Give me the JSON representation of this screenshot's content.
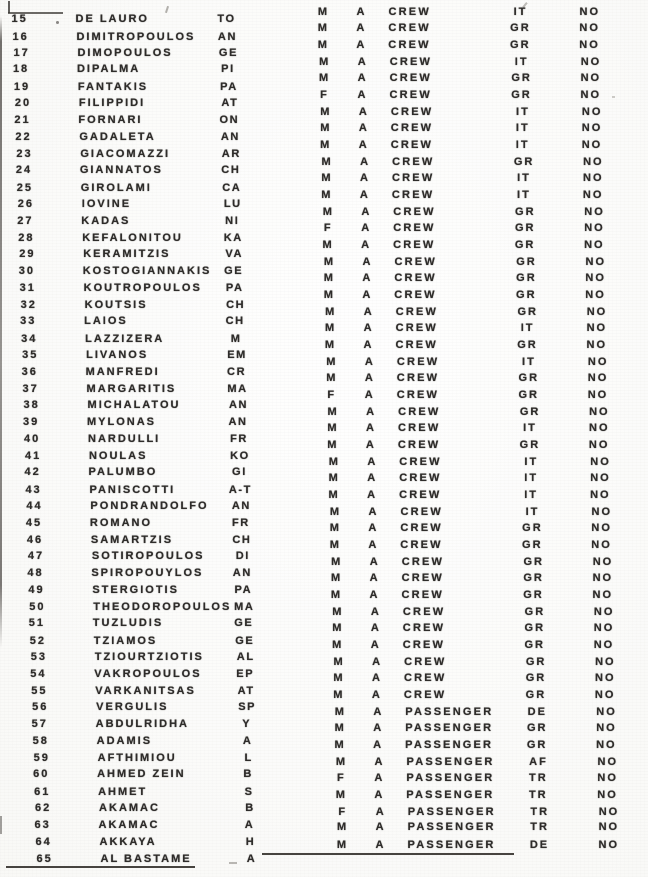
{
  "colors": {
    "ink": "#2e2c2a",
    "paper": "#fbfbf9",
    "rule": "#474440"
  },
  "table": {
    "rows": [
      {
        "num": "15",
        "surname": "DE LAURO",
        "given": "TO",
        "gender": "M",
        "status": "A",
        "type": "CREW",
        "nationality": "IT",
        "flag": "NO"
      },
      {
        "num": "16",
        "surname": "DIMITROPOULOS",
        "given": "AN",
        "gender": "M",
        "status": "A",
        "type": "CREW",
        "nationality": "GR",
        "flag": "NO"
      },
      {
        "num": "17",
        "surname": "DIMOPOULOS",
        "given": "GE",
        "gender": "M",
        "status": "A",
        "type": "CREW",
        "nationality": "GR",
        "flag": "NO"
      },
      {
        "num": "18",
        "surname": "DIPALMA",
        "given": "PI",
        "gender": "M",
        "status": "A",
        "type": "CREW",
        "nationality": "IT",
        "flag": "NO"
      },
      {
        "num": "19",
        "surname": "FANTAKIS",
        "given": "PA",
        "gender": "M",
        "status": "A",
        "type": "CREW",
        "nationality": "GR",
        "flag": "NO"
      },
      {
        "num": "20",
        "surname": "FILIPPIDI",
        "given": "AT",
        "gender": "F",
        "status": "A",
        "type": "CREW",
        "nationality": "GR",
        "flag": "NO"
      },
      {
        "num": "21",
        "surname": "FORNARI",
        "given": "ON",
        "gender": "M",
        "status": "A",
        "type": "CREW",
        "nationality": "IT",
        "flag": "NO"
      },
      {
        "num": "22",
        "surname": "GADALETA",
        "given": "AN",
        "gender": "M",
        "status": "A",
        "type": "CREW",
        "nationality": "IT",
        "flag": "NO"
      },
      {
        "num": "23",
        "surname": "GIACOMAZZI",
        "given": "AR",
        "gender": "M",
        "status": "A",
        "type": "CREW",
        "nationality": "IT",
        "flag": "NO"
      },
      {
        "num": "24",
        "surname": "GIANNATOS",
        "given": "CH",
        "gender": "M",
        "status": "A",
        "type": "CREW",
        "nationality": "GR",
        "flag": "NO"
      },
      {
        "num": "25",
        "surname": "GIROLAMI",
        "given": "CA",
        "gender": "M",
        "status": "A",
        "type": "CREW",
        "nationality": "IT",
        "flag": "NO"
      },
      {
        "num": "26",
        "surname": "IOVINE",
        "given": "LU",
        "gender": "M",
        "status": "A",
        "type": "CREW",
        "nationality": "IT",
        "flag": "NO"
      },
      {
        "num": "27",
        "surname": "KADAS",
        "given": "NI",
        "gender": "M",
        "status": "A",
        "type": "CREW",
        "nationality": "GR",
        "flag": "NO"
      },
      {
        "num": "28",
        "surname": "KEFALONITOU",
        "given": "KA",
        "gender": "F",
        "status": "A",
        "type": "CREW",
        "nationality": "GR",
        "flag": "NO"
      },
      {
        "num": "29",
        "surname": "KERAMITZIS",
        "given": "VA",
        "gender": "M",
        "status": "A",
        "type": "CREW",
        "nationality": "GR",
        "flag": "NO"
      },
      {
        "num": "30",
        "surname": "KOSTOGIANNAKIS",
        "given": "GE",
        "gender": "M",
        "status": "A",
        "type": "CREW",
        "nationality": "GR",
        "flag": "NO"
      },
      {
        "num": "31",
        "surname": "KOUTROPOULOS",
        "given": "PA",
        "gender": "M",
        "status": "A",
        "type": "CREW",
        "nationality": "GR",
        "flag": "NO"
      },
      {
        "num": "32",
        "surname": "KOUTSIS",
        "given": "CH",
        "gender": "M",
        "status": "A",
        "type": "CREW",
        "nationality": "GR",
        "flag": "NO"
      },
      {
        "num": "33",
        "surname": "LAIOS",
        "given": "CH",
        "gender": "M",
        "status": "A",
        "type": "CREW",
        "nationality": "GR",
        "flag": "NO"
      },
      {
        "num": "34",
        "surname": "LAZZIZERA",
        "given": "M",
        "gender": "M",
        "status": "A",
        "type": "CREW",
        "nationality": "IT",
        "flag": "NO"
      },
      {
        "num": "35",
        "surname": "LIVANOS",
        "given": "EM",
        "gender": "M",
        "status": "A",
        "type": "CREW",
        "nationality": "GR",
        "flag": "NO"
      },
      {
        "num": "36",
        "surname": "MANFREDI",
        "given": "CR",
        "gender": "M",
        "status": "A",
        "type": "CREW",
        "nationality": "IT",
        "flag": "NO"
      },
      {
        "num": "37",
        "surname": "MARGARITIS",
        "given": "MA",
        "gender": "M",
        "status": "A",
        "type": "CREW",
        "nationality": "GR",
        "flag": "NO"
      },
      {
        "num": "38",
        "surname": "MICHALATOU",
        "given": "AN",
        "gender": "F",
        "status": "A",
        "type": "CREW",
        "nationality": "GR",
        "flag": "NO"
      },
      {
        "num": "39",
        "surname": "MYLONAS",
        "given": "AN",
        "gender": "M",
        "status": "A",
        "type": "CREW",
        "nationality": "GR",
        "flag": "NO"
      },
      {
        "num": "40",
        "surname": "NARDULLI",
        "given": "FR",
        "gender": "M",
        "status": "A",
        "type": "CREW",
        "nationality": "IT",
        "flag": "NO"
      },
      {
        "num": "41",
        "surname": "NOULAS",
        "given": "KO",
        "gender": "M",
        "status": "A",
        "type": "CREW",
        "nationality": "GR",
        "flag": "NO"
      },
      {
        "num": "42",
        "surname": "PALUMBO",
        "given": "GI",
        "gender": "M",
        "status": "A",
        "type": "CREW",
        "nationality": "IT",
        "flag": "NO"
      },
      {
        "num": "43",
        "surname": "PANISCOTTI",
        "given": "A-T",
        "gender": "M",
        "status": "A",
        "type": "CREW",
        "nationality": "IT",
        "flag": "NO"
      },
      {
        "num": "44",
        "surname": "PONDRANDOLFO",
        "given": "AN",
        "gender": "M",
        "status": "A",
        "type": "CREW",
        "nationality": "IT",
        "flag": "NO"
      },
      {
        "num": "45",
        "surname": "ROMANO",
        "given": "FR",
        "gender": "M",
        "status": "A",
        "type": "CREW",
        "nationality": "IT",
        "flag": "NO"
      },
      {
        "num": "46",
        "surname": "SAMARTZIS",
        "given": "CH",
        "gender": "M",
        "status": "A",
        "type": "CREW",
        "nationality": "GR",
        "flag": "NO"
      },
      {
        "num": "47",
        "surname": "SOTIROPOULOS",
        "given": "DI",
        "gender": "M",
        "status": "A",
        "type": "CREW",
        "nationality": "GR",
        "flag": "NO"
      },
      {
        "num": "48",
        "surname": "SPIROPOUYLOS",
        "given": "AN",
        "gender": "M",
        "status": "A",
        "type": "CREW",
        "nationality": "GR",
        "flag": "NO"
      },
      {
        "num": "49",
        "surname": "STERGIOTIS",
        "given": "PA",
        "gender": "M",
        "status": "A",
        "type": "CREW",
        "nationality": "GR",
        "flag": "NO"
      },
      {
        "num": "50",
        "surname": "THEODOROPOULOS",
        "given": "MA",
        "gender": "M",
        "status": "A",
        "type": "CREW",
        "nationality": "GR",
        "flag": "NO"
      },
      {
        "num": "51",
        "surname": "TUZLUDIS",
        "given": "GE",
        "gender": "M",
        "status": "A",
        "type": "CREW",
        "nationality": "GR",
        "flag": "NO"
      },
      {
        "num": "52",
        "surname": "TZIAMOS",
        "given": "GE",
        "gender": "M",
        "status": "A",
        "type": "CREW",
        "nationality": "GR",
        "flag": "NO"
      },
      {
        "num": "53",
        "surname": "TZIOURTZIOTIS",
        "given": "AL",
        "gender": "M",
        "status": "A",
        "type": "CREW",
        "nationality": "GR",
        "flag": "NO"
      },
      {
        "num": "54",
        "surname": "VAKROPOULOS",
        "given": "EP",
        "gender": "M",
        "status": "A",
        "type": "CREW",
        "nationality": "GR",
        "flag": "NO"
      },
      {
        "num": "55",
        "surname": "VARKANITSAS",
        "given": "AT",
        "gender": "M",
        "status": "A",
        "type": "CREW",
        "nationality": "GR",
        "flag": "NO"
      },
      {
        "num": "56",
        "surname": "VERGULIS",
        "given": "SP",
        "gender": "M",
        "status": "A",
        "type": "CREW",
        "nationality": "GR",
        "flag": "NO"
      },
      {
        "num": "57",
        "surname": "ABDULRIDHA",
        "given": "Y",
        "gender": "M",
        "status": "A",
        "type": "PASSENGER",
        "nationality": "DE",
        "flag": "NO"
      },
      {
        "num": "58",
        "surname": "ADAMIS",
        "given": "A",
        "gender": "M",
        "status": "A",
        "type": "PASSENGER",
        "nationality": "GR",
        "flag": "NO"
      },
      {
        "num": "59",
        "surname": "AFTHIMIOU",
        "given": "L",
        "gender": "M",
        "status": "A",
        "type": "PASSENGER",
        "nationality": "GR",
        "flag": "NO"
      },
      {
        "num": "60",
        "surname": "AHMED ZEIN",
        "given": "B",
        "gender": "M",
        "status": "A",
        "type": "PASSENGER",
        "nationality": "AF",
        "flag": "NO"
      },
      {
        "num": "61",
        "surname": "AHMET",
        "given": "S",
        "gender": "F",
        "status": "A",
        "type": "PASSENGER",
        "nationality": "TR",
        "flag": "NO"
      },
      {
        "num": "62",
        "surname": "AKAMAC",
        "given": "B",
        "gender": "M",
        "status": "A",
        "type": "PASSENGER",
        "nationality": "TR",
        "flag": "NO"
      },
      {
        "num": "63",
        "surname": "AKAMAC",
        "given": "A",
        "gender": "F",
        "status": "A",
        "type": "PASSENGER",
        "nationality": "TR",
        "flag": "NO"
      },
      {
        "num": "64",
        "surname": "AKKAYA",
        "given": "H",
        "gender": "M",
        "status": "A",
        "type": "PASSENGER",
        "nationality": "TR",
        "flag": "NO"
      },
      {
        "num": "65",
        "surname": "AL BASTAME",
        "given": "A",
        "gender": "M",
        "status": "A",
        "type": "PASSENGER",
        "nationality": "DE",
        "flag": "NO"
      }
    ]
  }
}
